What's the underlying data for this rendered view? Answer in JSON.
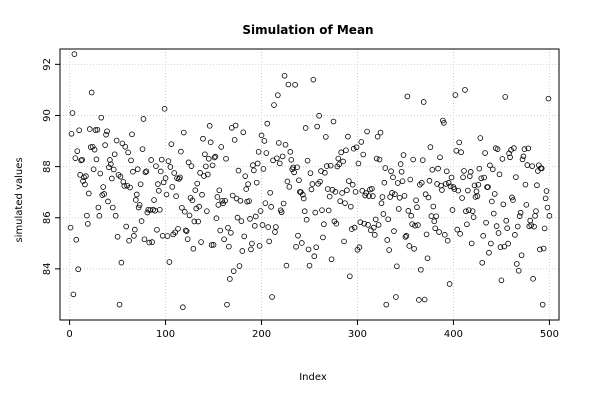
{
  "chart_data": {
    "type": "scatter",
    "title": "Simulation of Mean",
    "xlabel": "Index",
    "ylabel": "simulated values",
    "xlim": [
      -10,
      510
    ],
    "ylim": [
      82.0,
      92.6
    ],
    "x_ticks": [
      0,
      100,
      200,
      300,
      400,
      500
    ],
    "y_ticks": [
      84,
      86,
      88,
      90,
      92
    ],
    "grid": true,
    "marker": "open-circle",
    "point_color": "#000000",
    "n_points": 500,
    "seed": 20240517,
    "distribution": {
      "mean": 86.9,
      "sd": 1.5
    },
    "notable_points": [
      {
        "x": 5,
        "y": 92.4
      },
      {
        "x": 4,
        "y": 83.0
      },
      {
        "x": 23,
        "y": 90.9
      },
      {
        "x": 118,
        "y": 82.5
      },
      {
        "x": 254,
        "y": 91.4
      },
      {
        "x": 235,
        "y": 91.2
      },
      {
        "x": 412,
        "y": 91.0
      },
      {
        "x": 402,
        "y": 90.8
      },
      {
        "x": 340,
        "y": 82.9
      },
      {
        "x": 370,
        "y": 82.8
      }
    ]
  }
}
